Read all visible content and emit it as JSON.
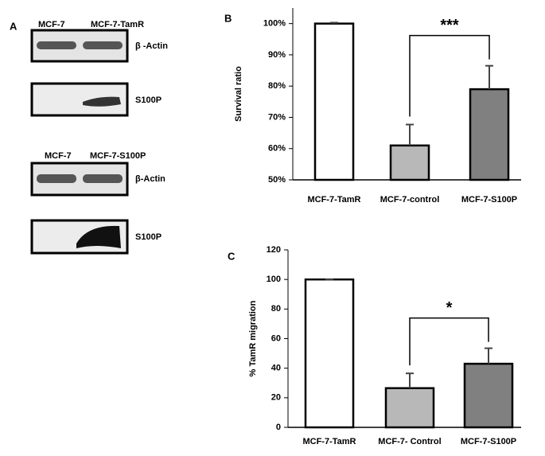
{
  "panel_a": {
    "label": "A",
    "blots": [
      {
        "header": [
          "MCF-7",
          "MCF-7-TamR"
        ],
        "bands": [
          "β -Actin",
          "S100P"
        ]
      },
      {
        "header": [
          "MCF-7",
          "MCF-7-S100P"
        ],
        "bands": [
          "β-Actin",
          "S100P"
        ]
      }
    ]
  },
  "chart_data": [
    {
      "type": "bar",
      "panel": "B",
      "ylabel": "Survival ratio",
      "categories": [
        "MCF-7-TamR",
        "MCF-7-control",
        "MCF-7-S100P"
      ],
      "values": [
        100,
        61,
        79
      ],
      "errors": [
        0.3,
        6.7,
        7.5
      ],
      "colors": [
        "#ffffff",
        "#b8b8b8",
        "#808080"
      ],
      "ylim": [
        50,
        105
      ],
      "yticks": [
        {
          "value": 50,
          "label": "50%"
        },
        {
          "value": 60,
          "label": "60%"
        },
        {
          "value": 70,
          "label": "70%"
        },
        {
          "value": 80,
          "label": "80%"
        },
        {
          "value": 90,
          "label": "90%"
        },
        {
          "value": 100,
          "label": "100%"
        }
      ],
      "annotation": "***"
    },
    {
      "type": "bar",
      "panel": "C",
      "ylabel": "% TamR migration",
      "categories": [
        "MCF-7-TamR",
        "MCF-7- Control",
        "MCF-7-S100P"
      ],
      "values": [
        100,
        26.5,
        43
      ],
      "errors": [
        0,
        10,
        10.5
      ],
      "colors": [
        "#ffffff",
        "#b8b8b8",
        "#808080"
      ],
      "ylim": [
        0,
        120
      ],
      "yticks": [
        0,
        20,
        40,
        60,
        80,
        100,
        120
      ],
      "annotation": "*"
    }
  ]
}
